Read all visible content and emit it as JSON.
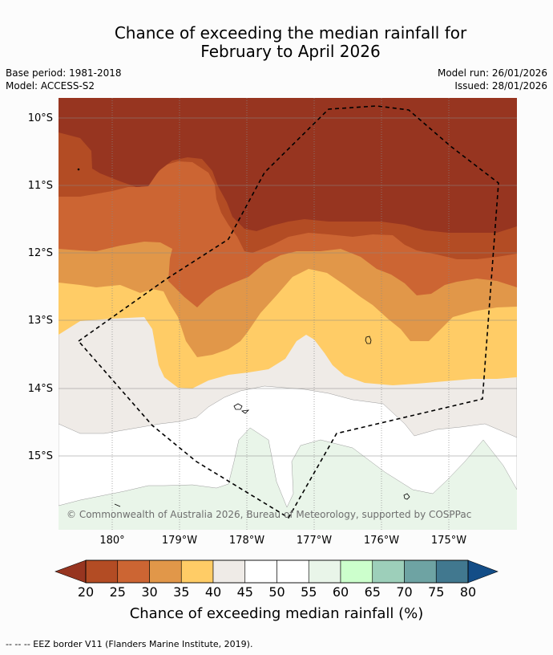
{
  "title": {
    "line1": "Chance of exceeding the median rainfall for",
    "line2": "February to April 2026"
  },
  "meta": {
    "base_period": "Base period: 1981-2018",
    "model": "Model: ACCESS-S2",
    "model_run": "Model run: 26/01/2026",
    "issued": "Issued: 28/01/2026"
  },
  "map": {
    "lat_labels": [
      "10°S",
      "11°S",
      "12°S",
      "13°S",
      "14°S",
      "15°S"
    ],
    "lon_labels": [
      "180°",
      "179°W",
      "178°W",
      "177°W",
      "176°W",
      "175°W"
    ],
    "copyright": "© Commonwealth of Australia 2026, Bureau of Meteorology, supported by COSPPac",
    "category_colors": {
      "below_25": "#973520",
      "25_30": "#b34c24",
      "30_35": "#cc6533",
      "35_40": "#e19749",
      "40_45": "#ffcc66",
      "45_50": "#efebe7",
      "50_60": "#ffffff",
      "60_65": "#e9f5e9",
      "land_outline": "#000000",
      "eez_border": "#000000"
    }
  },
  "colorbar": {
    "ticks": [
      "20",
      "25",
      "30",
      "35",
      "40",
      "45",
      "50",
      "55",
      "60",
      "65",
      "70",
      "75",
      "80"
    ],
    "colors": [
      "#b34c24",
      "#cc6533",
      "#e19749",
      "#ffcc66",
      "#efebe7",
      "#ffffff",
      "#ffffff",
      "#e9f5e9",
      "#ccffcc",
      "#9dcfba",
      "#6ea3a3",
      "#41788f"
    ],
    "under_color": "#973520",
    "over_color": "#134d87",
    "label": "Chance of exceeding median rainfall (%)"
  },
  "footnote": "--  --  -- EEZ border V11 (Flanders Marine Institute, 2019)."
}
